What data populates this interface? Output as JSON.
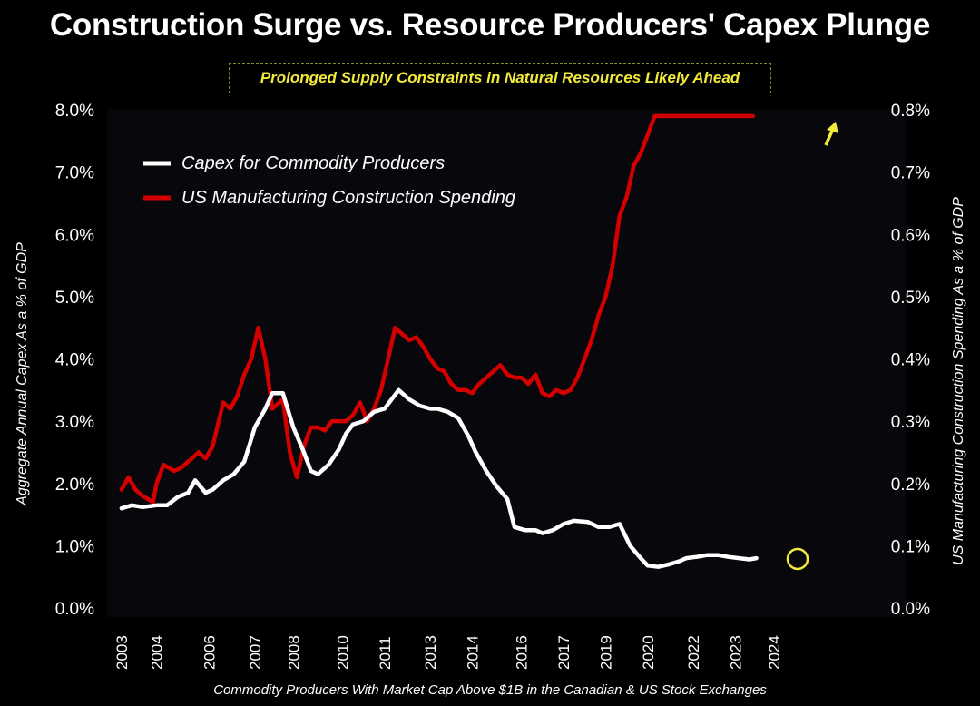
{
  "title": "Construction Surge vs. Resource Producers' Capex Plunge",
  "subtitle": "Prolonged Supply Constraints in Natural Resources Likely Ahead",
  "footnote": "Commodity Producers With Market Cap Above $1B in the Canadian & US Stock Exchanges",
  "colors": {
    "background": "#000000",
    "capex": "#ffffff",
    "construction": "#d40000",
    "highlight": "#f2ea3a"
  },
  "chart_data": {
    "type": "line",
    "xlabel": "",
    "ylabel_left": "Aggregate Annual Capex As a % of GDP",
    "ylabel_right": "US Manufacturing Construction Spending As a % of GDP",
    "x_tick_labels": [
      "2003",
      "2004",
      "2006",
      "2007",
      "2008",
      "2010",
      "2011",
      "2013",
      "2014",
      "2016",
      "2017",
      "2019",
      "2020",
      "2022",
      "2023",
      "2024"
    ],
    "x_tick_decimals": [
      2003.0,
      2004.0,
      2005.5,
      2006.8,
      2007.9,
      2009.3,
      2010.5,
      2011.8,
      2013.0,
      2014.4,
      2015.6,
      2016.8,
      2018.0,
      2019.3,
      2020.5,
      2021.6
    ],
    "xlim": [
      2002.9,
      2022.3
    ],
    "yleft": {
      "ylim": [
        0,
        8
      ],
      "ticks": [
        "0.0%",
        "1.0%",
        "2.0%",
        "3.0%",
        "4.0%",
        "5.0%",
        "6.0%",
        "7.0%",
        "8.0%"
      ]
    },
    "yright": {
      "ylim": [
        0,
        0.8
      ],
      "ticks": [
        "0.0%",
        "0.1%",
        "0.2%",
        "0.3%",
        "0.4%",
        "0.5%",
        "0.6%",
        "0.7%",
        "0.8%"
      ]
    },
    "grid": false,
    "legend_placement": "top-left",
    "series": [
      {
        "name": "Capex for Commodity Producers",
        "axis": "left",
        "x": [
          2003.0,
          2003.3,
          2003.6,
          2004.0,
          2004.3,
          2004.6,
          2004.9,
          2005.1,
          2005.4,
          2005.6,
          2005.9,
          2006.2,
          2006.5,
          2006.8,
          2007.1,
          2007.3,
          2007.6,
          2007.9,
          2008.2,
          2008.4,
          2008.6,
          2008.9,
          2009.2,
          2009.4,
          2009.6,
          2009.9,
          2010.2,
          2010.5,
          2010.9,
          2011.2,
          2011.5,
          2011.8,
          2012.0,
          2012.3,
          2012.6,
          2012.9,
          2013.1,
          2013.4,
          2013.7,
          2014.0,
          2014.2,
          2014.5,
          2014.8,
          2015.0,
          2015.3,
          2015.6,
          2015.9,
          2016.3,
          2016.6,
          2016.9,
          2017.2,
          2017.5,
          2017.8,
          2018.0,
          2018.3,
          2018.6,
          2018.9,
          2019.1,
          2019.4,
          2019.7,
          2020.0,
          2020.3,
          2020.6,
          2020.9,
          2021.1
        ],
        "values": [
          1.6,
          1.65,
          1.62,
          1.65,
          1.65,
          1.78,
          1.85,
          2.05,
          1.85,
          1.9,
          2.05,
          2.15,
          2.35,
          2.9,
          3.2,
          3.45,
          3.45,
          2.9,
          2.5,
          2.2,
          2.15,
          2.3,
          2.55,
          2.8,
          2.95,
          3.0,
          3.15,
          3.2,
          3.5,
          3.35,
          3.25,
          3.2,
          3.2,
          3.15,
          3.05,
          2.75,
          2.5,
          2.2,
          1.95,
          1.75,
          1.3,
          1.25,
          1.25,
          1.2,
          1.25,
          1.35,
          1.4,
          1.38,
          1.3,
          1.3,
          1.35,
          1.0,
          0.8,
          0.68,
          0.66,
          0.7,
          0.75,
          0.8,
          0.82,
          0.85,
          0.85,
          0.82,
          0.8,
          0.78,
          0.8
        ]
      },
      {
        "name": "US Manufacturing Construction Spending",
        "axis": "right",
        "x": [
          2003.0,
          2003.2,
          2003.4,
          2003.6,
          2003.9,
          2004.0,
          2004.2,
          2004.5,
          2004.7,
          2005.0,
          2005.2,
          2005.4,
          2005.6,
          2005.9,
          2006.1,
          2006.3,
          2006.5,
          2006.7,
          2006.9,
          2007.1,
          2007.3,
          2007.6,
          2007.8,
          2008.0,
          2008.2,
          2008.4,
          2008.6,
          2008.8,
          2009.0,
          2009.2,
          2009.4,
          2009.6,
          2009.8,
          2010.0,
          2010.2,
          2010.4,
          2010.6,
          2010.8,
          2011.0,
          2011.2,
          2011.4,
          2011.6,
          2011.8,
          2012.0,
          2012.2,
          2012.4,
          2012.6,
          2012.8,
          2013.0,
          2013.2,
          2013.4,
          2013.6,
          2013.8,
          2014.0,
          2014.2,
          2014.4,
          2014.6,
          2014.8,
          2015.0,
          2015.2,
          2015.4,
          2015.6,
          2015.8,
          2016.0,
          2016.2,
          2016.4,
          2016.6,
          2016.8,
          2017.0,
          2017.2,
          2017.4,
          2017.6,
          2017.8,
          2018.0,
          2018.2,
          2018.4,
          2018.6,
          2018.8,
          2019.0,
          2019.2,
          2019.4,
          2019.6,
          2019.8,
          2020.0,
          2020.1,
          2020.2,
          2020.35,
          2020.5,
          2020.6,
          2020.75,
          2020.9,
          2021.0
        ],
        "values": [
          0.19,
          0.21,
          0.19,
          0.18,
          0.17,
          0.2,
          0.23,
          0.22,
          0.225,
          0.24,
          0.25,
          0.24,
          0.26,
          0.33,
          0.32,
          0.34,
          0.375,
          0.4,
          0.45,
          0.4,
          0.32,
          0.335,
          0.25,
          0.21,
          0.26,
          0.29,
          0.29,
          0.285,
          0.3,
          0.3,
          0.3,
          0.31,
          0.33,
          0.3,
          0.32,
          0.35,
          0.4,
          0.45,
          0.44,
          0.43,
          0.435,
          0.42,
          0.4,
          0.385,
          0.38,
          0.36,
          0.35,
          0.35,
          0.345,
          0.36,
          0.37,
          0.38,
          0.39,
          0.375,
          0.37,
          0.37,
          0.36,
          0.375,
          0.345,
          0.34,
          0.35,
          0.345,
          0.35,
          0.37,
          0.4,
          0.43,
          0.47,
          0.5,
          0.55,
          0.63,
          0.66,
          0.71,
          0.73,
          0.76,
          0.79,
          0.79,
          0.79,
          0.79,
          0.79,
          0.79,
          0.79,
          0.79,
          0.79,
          0.79,
          0.79,
          0.79,
          0.79,
          0.79,
          0.79,
          0.79,
          0.79,
          0.79
        ]
      }
    ]
  }
}
